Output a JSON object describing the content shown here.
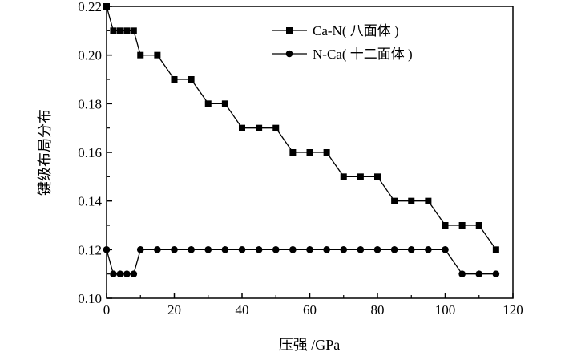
{
  "chart_data": {
    "type": "line",
    "xlabel": "压强 /GPa",
    "ylabel": "键级布局分布",
    "xlim": [
      0,
      120
    ],
    "ylim": [
      0.1,
      0.22
    ],
    "x_ticks": [
      "0",
      "20",
      "40",
      "60",
      "80",
      "100",
      "120"
    ],
    "y_ticks": [
      "0.10",
      "0.12",
      "0.14",
      "0.16",
      "0.18",
      "0.20",
      "0.22"
    ],
    "grid": false,
    "legend_position": "top-right",
    "series": [
      {
        "name": "Ca-N( 八面体 )",
        "marker": "square",
        "color": "#000000",
        "x": [
          0,
          2,
          4,
          6,
          8,
          10,
          15,
          20,
          25,
          30,
          35,
          40,
          45,
          50,
          55,
          60,
          65,
          70,
          75,
          80,
          85,
          90,
          95,
          100,
          105,
          110,
          115
        ],
        "y": [
          0.22,
          0.21,
          0.21,
          0.21,
          0.21,
          0.2,
          0.2,
          0.19,
          0.19,
          0.18,
          0.18,
          0.17,
          0.17,
          0.17,
          0.16,
          0.16,
          0.16,
          0.15,
          0.15,
          0.15,
          0.14,
          0.14,
          0.14,
          0.13,
          0.13,
          0.13,
          0.12
        ]
      },
      {
        "name": "N-Ca( 十二面体 )",
        "marker": "circle",
        "color": "#000000",
        "x": [
          0,
          2,
          4,
          6,
          8,
          10,
          15,
          20,
          25,
          30,
          35,
          40,
          45,
          50,
          55,
          60,
          65,
          70,
          75,
          80,
          85,
          90,
          95,
          100,
          105,
          110,
          115
        ],
        "y": [
          0.12,
          0.11,
          0.11,
          0.11,
          0.11,
          0.12,
          0.12,
          0.12,
          0.12,
          0.12,
          0.12,
          0.12,
          0.12,
          0.12,
          0.12,
          0.12,
          0.12,
          0.12,
          0.12,
          0.12,
          0.12,
          0.12,
          0.12,
          0.12,
          0.11,
          0.11,
          0.11
        ]
      }
    ]
  }
}
